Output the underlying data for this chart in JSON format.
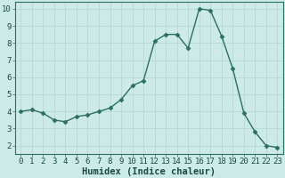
{
  "x": [
    0,
    1,
    2,
    3,
    4,
    5,
    6,
    7,
    8,
    9,
    10,
    11,
    12,
    13,
    14,
    15,
    16,
    17,
    18,
    19,
    20,
    21,
    22,
    23
  ],
  "y": [
    4.0,
    4.1,
    3.9,
    3.5,
    3.4,
    3.7,
    3.8,
    4.0,
    4.2,
    4.7,
    5.5,
    5.8,
    8.1,
    8.5,
    8.5,
    7.7,
    10.0,
    9.9,
    8.4,
    6.5,
    3.9,
    2.8,
    2.0,
    1.9
  ],
  "xlabel": "Humidex (Indice chaleur)",
  "xlim": [
    -0.5,
    23.5
  ],
  "ylim": [
    1.5,
    10.4
  ],
  "yticks": [
    2,
    3,
    4,
    5,
    6,
    7,
    8,
    9,
    10
  ],
  "xticks": [
    0,
    1,
    2,
    3,
    4,
    5,
    6,
    7,
    8,
    9,
    10,
    11,
    12,
    13,
    14,
    15,
    16,
    17,
    18,
    19,
    20,
    21,
    22,
    23
  ],
  "line_color": "#2d6e62",
  "marker": "D",
  "marker_size": 2.5,
  "bg_color": "#cceae7",
  "grid_color": "#b8d8d4",
  "label_fontsize": 7.5,
  "tick_fontsize": 6.5
}
